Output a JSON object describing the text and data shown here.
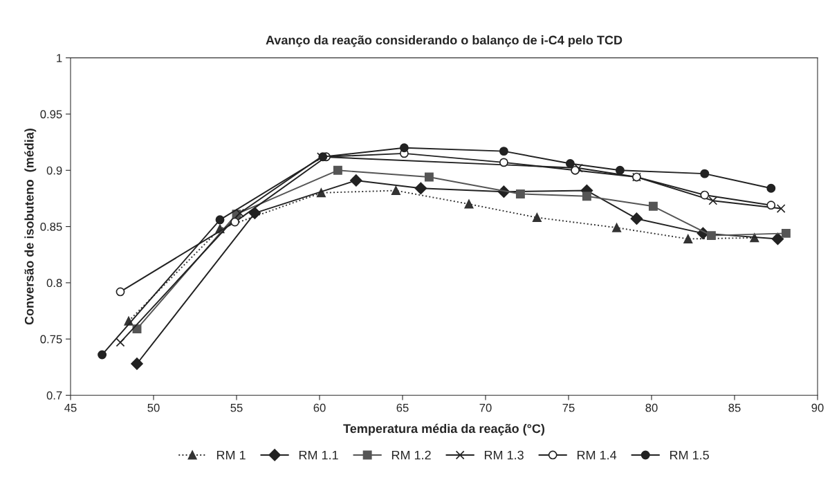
{
  "chart_data": {
    "type": "line",
    "title": "Avanço da reação considerando o balanço de i-C4 pelo TCD",
    "xlabel": "Temperatura média da reação (°C)",
    "ylabel": "Conversão de isobuteno  (média)",
    "xlim": [
      45,
      90
    ],
    "xticks": [
      45,
      50,
      55,
      60,
      65,
      70,
      75,
      80,
      85,
      90
    ],
    "ylim": [
      0.7,
      1
    ],
    "yticks": [
      0.7,
      0.75,
      0.8,
      0.85,
      0.9,
      0.95,
      1
    ],
    "grid": false,
    "legend": "bottom",
    "series": [
      {
        "name": "RM 1",
        "color": "#333333",
        "marker": "triangle",
        "line_style": "dotted",
        "x": [
          48.5,
          54.0,
          60.1,
          64.6,
          69.0,
          73.1,
          77.9,
          82.2,
          86.2
        ],
        "values": [
          0.766,
          0.848,
          0.88,
          0.882,
          0.87,
          0.858,
          0.849,
          0.839,
          0.84
        ]
      },
      {
        "name": "RM 1.1",
        "color": "#222222",
        "marker": "diamond",
        "line_style": "solid",
        "x": [
          49.0,
          56.1,
          62.2,
          66.1,
          71.1,
          76.1,
          79.1,
          83.1,
          87.6
        ],
        "values": [
          0.728,
          0.862,
          0.891,
          0.884,
          0.881,
          0.882,
          0.857,
          0.844,
          0.839
        ]
      },
      {
        "name": "RM 1.2",
        "color": "#555555",
        "marker": "square",
        "line_style": "solid",
        "x": [
          49.0,
          55.0,
          61.1,
          66.6,
          72.1,
          76.1,
          80.1,
          83.6,
          88.1
        ],
        "values": [
          0.759,
          0.861,
          0.9,
          0.894,
          0.879,
          0.877,
          0.868,
          0.842,
          0.844
        ]
      },
      {
        "name": "RM 1.3",
        "color": "#222222",
        "marker": "cross",
        "line_style": "solid",
        "x": [
          48.0,
          55.2,
          60.1,
          75.6,
          79.1,
          83.7,
          87.8
        ],
        "values": [
          0.747,
          0.862,
          0.912,
          0.902,
          0.894,
          0.873,
          0.866
        ]
      },
      {
        "name": "RM 1.4",
        "color": "#222222",
        "marker": "circle_open",
        "line_style": "solid",
        "x": [
          48.0,
          54.9,
          60.4,
          65.1,
          71.1,
          75.4,
          79.1,
          83.2,
          87.2
        ],
        "values": [
          0.792,
          0.854,
          0.912,
          0.915,
          0.907,
          0.9,
          0.894,
          0.878,
          0.869
        ]
      },
      {
        "name": "RM 1.5",
        "color": "#222222",
        "marker": "circle",
        "line_style": "solid",
        "x": [
          46.9,
          54.0,
          60.2,
          65.1,
          71.1,
          75.1,
          78.1,
          83.2,
          87.2
        ],
        "values": [
          0.736,
          0.856,
          0.912,
          0.92,
          0.917,
          0.906,
          0.9,
          0.897,
          0.884
        ]
      }
    ]
  }
}
